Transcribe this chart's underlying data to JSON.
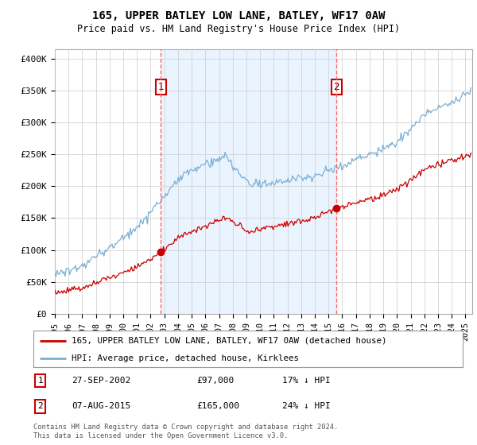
{
  "title": "165, UPPER BATLEY LOW LANE, BATLEY, WF17 0AW",
  "subtitle": "Price paid vs. HM Land Registry's House Price Index (HPI)",
  "ylabel_ticks": [
    "£0",
    "£50K",
    "£100K",
    "£150K",
    "£200K",
    "£250K",
    "£300K",
    "£350K",
    "£400K"
  ],
  "ytick_values": [
    0,
    50000,
    100000,
    150000,
    200000,
    250000,
    300000,
    350000,
    400000
  ],
  "ylim": [
    0,
    415000
  ],
  "xlim_start": 1995.0,
  "xlim_end": 2025.5,
  "transaction1_year": 2002.75,
  "transaction1_label": "1",
  "transaction1_price": 97000,
  "transaction1_date": "27-SEP-2002",
  "transaction1_hpi_diff": "17% ↓ HPI",
  "transaction2_year": 2015.58,
  "transaction2_label": "2",
  "transaction2_price": 165000,
  "transaction2_date": "07-AUG-2015",
  "transaction2_hpi_diff": "24% ↓ HPI",
  "hpi_color": "#7bafd4",
  "price_color": "#cc0000",
  "vline_color": "#ff5555",
  "shade_color": "#ddeeff",
  "legend_house_label": "165, UPPER BATLEY LOW LANE, BATLEY, WF17 0AW (detached house)",
  "legend_hpi_label": "HPI: Average price, detached house, Kirklees",
  "footer_text": "Contains HM Land Registry data © Crown copyright and database right 2024.\nThis data is licensed under the Open Government Licence v3.0.",
  "background_color": "#ffffff",
  "grid_color": "#cccccc"
}
